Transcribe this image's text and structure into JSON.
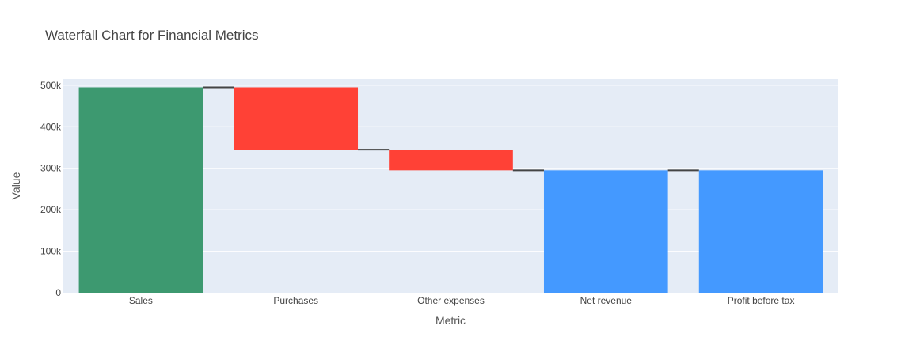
{
  "chart_data": {
    "type": "waterfall",
    "title": "Waterfall Chart for Financial Metrics",
    "xlabel": "Metric",
    "ylabel": "Value",
    "categories": [
      "Sales",
      "Purchases",
      "Other expenses",
      "Net revenue",
      "Profit before tax"
    ],
    "measures": [
      "absolute",
      "relative",
      "relative",
      "total",
      "total"
    ],
    "values": [
      495000,
      -150000,
      -50000,
      295000,
      295000
    ],
    "ylim": [
      0,
      515000
    ],
    "yticks": [
      0,
      100000,
      200000,
      300000,
      400000,
      500000
    ],
    "ytick_labels": [
      "0",
      "100k",
      "200k",
      "300k",
      "400k",
      "500k"
    ],
    "grid": true,
    "colors": {
      "increasing": "#3d9970",
      "decreasing": "#ff4136",
      "totals": "#4499ff",
      "plot_background": "#e5ecf6",
      "connector": "#444444"
    }
  }
}
